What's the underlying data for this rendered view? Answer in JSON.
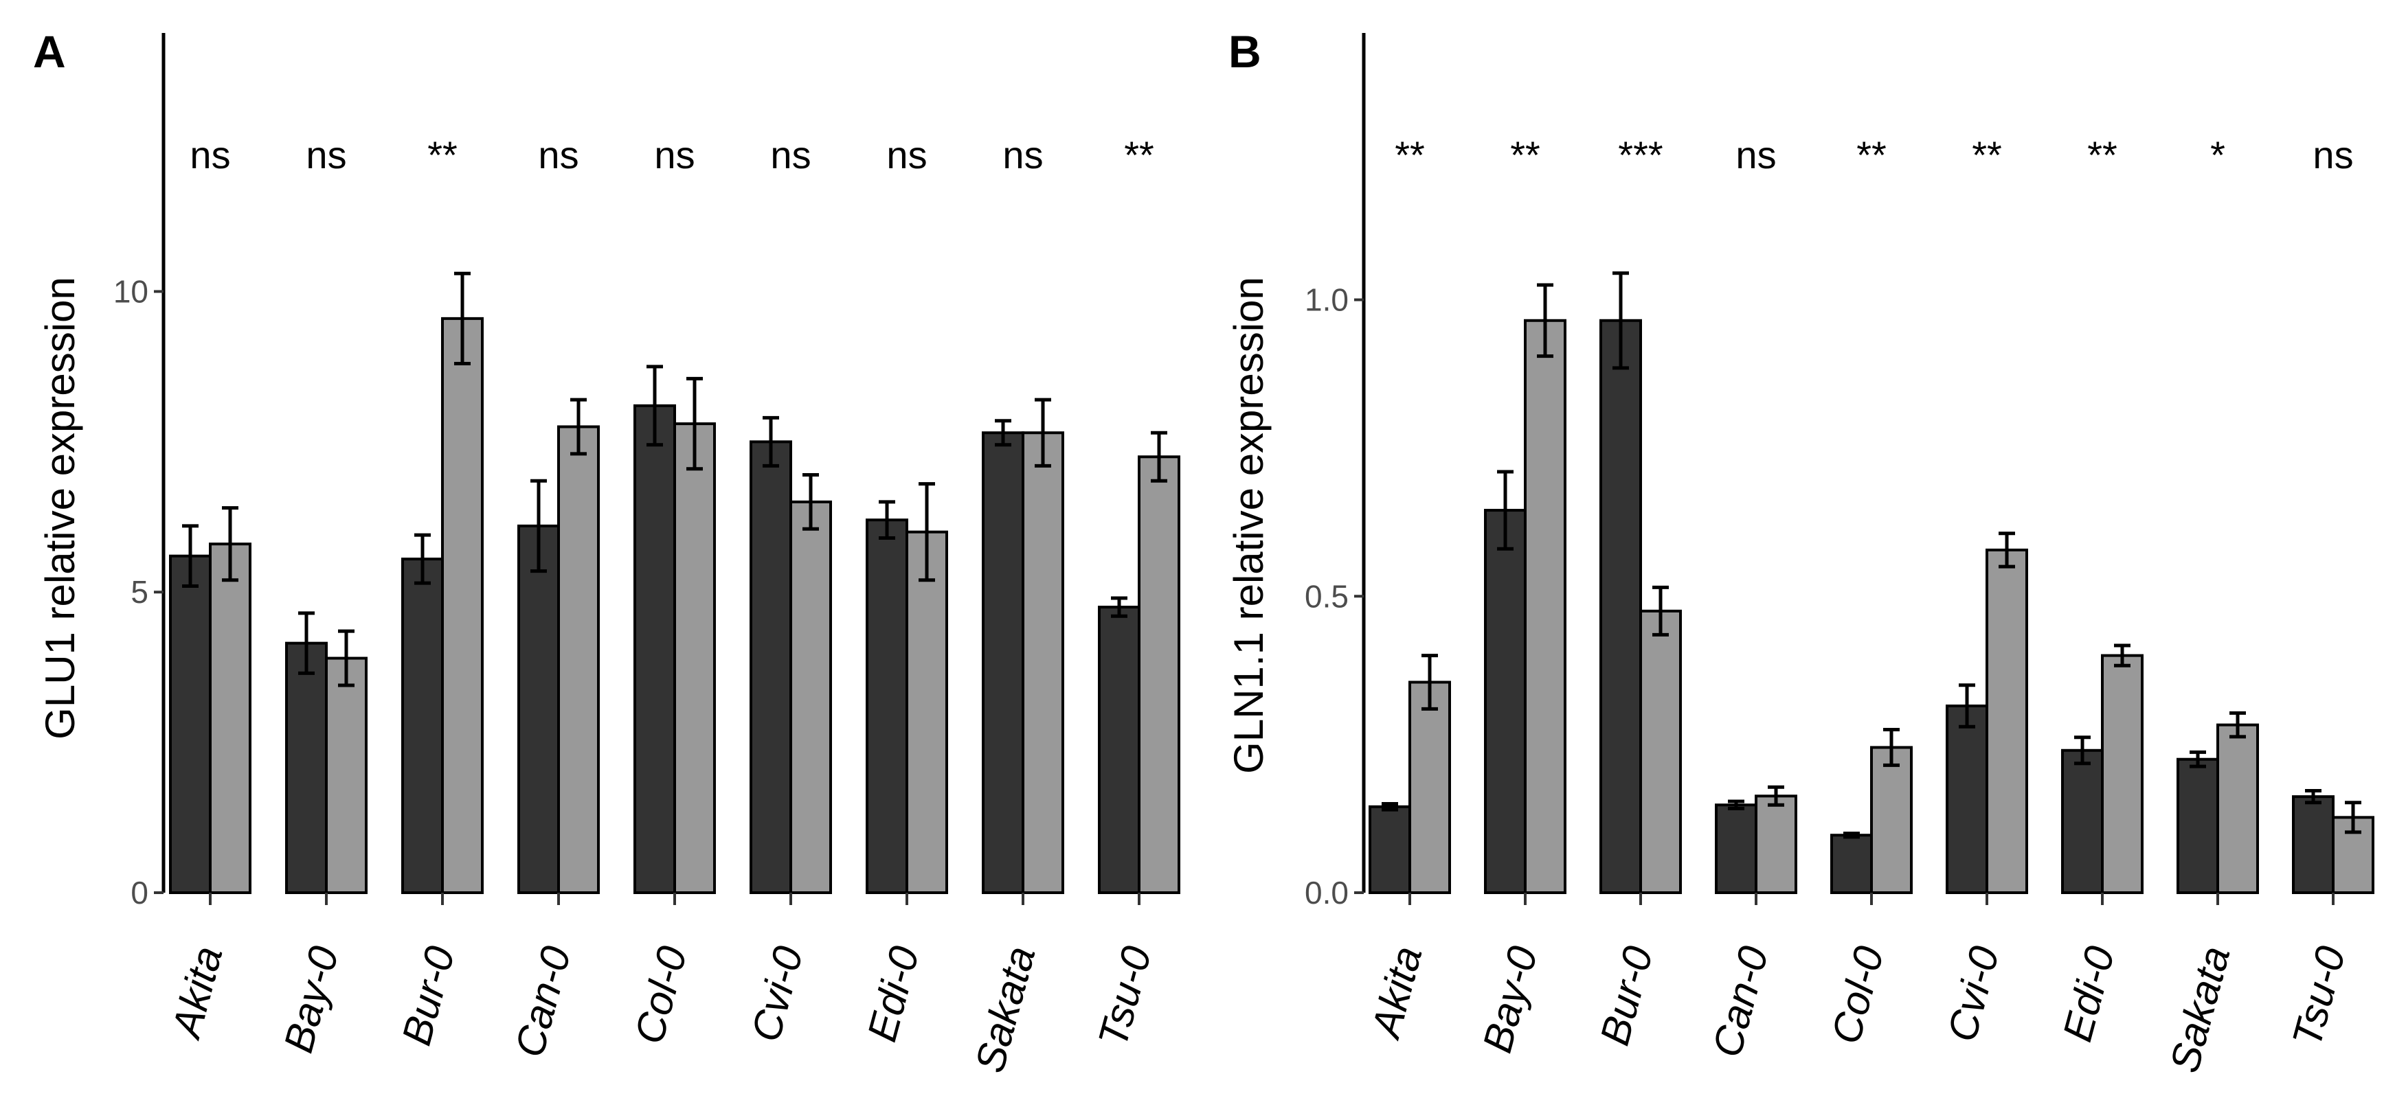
{
  "chart_data": [
    {
      "panel": "A",
      "type": "bar",
      "ylabel": "GLU1 relative expression",
      "ylim": [
        0,
        14.3
      ],
      "yticks": [
        0,
        5,
        10
      ],
      "categories": [
        "Akita",
        "Bay-0",
        "Bur-0",
        "Can-0",
        "Col-0",
        "Cvi-0",
        "Edi-0",
        "Sakata",
        "Tsu-0"
      ],
      "series": [
        {
          "name": "dark",
          "color": "#333333",
          "values": [
            5.6,
            4.15,
            5.55,
            6.1,
            8.1,
            7.5,
            6.2,
            7.65,
            4.75
          ],
          "err": [
            0.5,
            0.5,
            0.4,
            0.75,
            0.65,
            0.4,
            0.3,
            0.2,
            0.15
          ]
        },
        {
          "name": "light",
          "color": "#999999",
          "values": [
            5.8,
            3.9,
            9.55,
            7.75,
            7.8,
            6.5,
            6.0,
            7.65,
            7.25
          ],
          "err": [
            0.6,
            0.45,
            0.75,
            0.45,
            0.75,
            0.45,
            0.8,
            0.55,
            0.4
          ]
        }
      ],
      "significance": [
        "ns",
        "ns",
        "**",
        "ns",
        "ns",
        "ns",
        "ns",
        "ns",
        "**"
      ]
    },
    {
      "panel": "B",
      "type": "bar",
      "ylabel": "GLN1.1 relative expression",
      "ylim": [
        0,
        1.45
      ],
      "yticks": [
        0.0,
        0.5,
        1.0
      ],
      "ytick_labels": [
        "0.0",
        "0.5",
        "1.0"
      ],
      "categories": [
        "Akita",
        "Bay-0",
        "Bur-0",
        "Can-0",
        "Col-0",
        "Cvi-0",
        "Edi-0",
        "Sakata",
        "Tsu-0"
      ],
      "series": [
        {
          "name": "dark",
          "color": "#333333",
          "values": [
            0.145,
            0.645,
            0.965,
            0.148,
            0.097,
            0.315,
            0.24,
            0.225,
            0.162
          ],
          "err": [
            0.005,
            0.065,
            0.08,
            0.006,
            0.003,
            0.035,
            0.022,
            0.012,
            0.01
          ]
        },
        {
          "name": "light",
          "color": "#999999",
          "values": [
            0.355,
            0.965,
            0.475,
            0.163,
            0.245,
            0.578,
            0.4,
            0.283,
            0.127
          ],
          "err": [
            0.045,
            0.06,
            0.04,
            0.015,
            0.03,
            0.028,
            0.017,
            0.02,
            0.025
          ]
        }
      ],
      "significance": [
        "**",
        "**",
        "***",
        "ns",
        "**",
        "**",
        "**",
        "*",
        "ns"
      ]
    }
  ]
}
